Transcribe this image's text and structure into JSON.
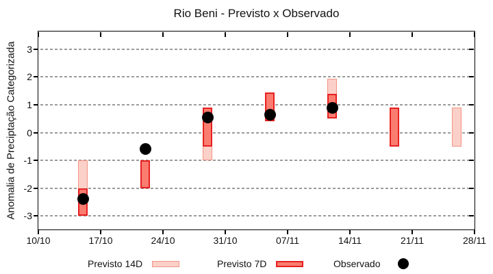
{
  "chart_data": {
    "type": "bar",
    "title": "Rio Beni - Previsto x Observado",
    "xlabel": "",
    "ylabel": "Anomalia de Preciptação Categorizada",
    "grid": "horizontal-dashed",
    "legend_position": "below-plot",
    "y_ticks": [
      3,
      2,
      1,
      0,
      -1,
      -2,
      -3
    ],
    "ylim": [
      -3.49,
      3.64
    ],
    "x_ticks": [
      {
        "label": "10/10",
        "day": 0
      },
      {
        "label": "17/10",
        "day": 7
      },
      {
        "label": "24/10",
        "day": 14
      },
      {
        "label": "31/10",
        "day": 21
      },
      {
        "label": "07/11",
        "day": 28
      },
      {
        "label": "14/11",
        "day": 35
      },
      {
        "label": "21/11",
        "day": 42
      },
      {
        "label": "28/11",
        "day": 49
      }
    ],
    "series": [
      {
        "name": "Previsto 14D",
        "type": "range-bar",
        "fill_color": "#fbd0c8",
        "border_color": "#f39384",
        "points": [
          {
            "date": "15/10",
            "day": 5,
            "low": -3.0,
            "high": -1.0
          },
          {
            "date": "29/10",
            "day": 19,
            "low": -1.0,
            "high": 0.9
          },
          {
            "date": "12/11",
            "day": 33,
            "low": 0.5,
            "high": 1.95
          },
          {
            "date": "26/11",
            "day": 47,
            "low": -0.5,
            "high": 0.9
          }
        ]
      },
      {
        "name": "Previsto 7D",
        "type": "range-bar",
        "fill_color": "#fa7d70",
        "border_color": "#e62020",
        "points": [
          {
            "date": "15/10",
            "day": 5,
            "low": -3.0,
            "high": -2.0
          },
          {
            "date": "22/10",
            "day": 12,
            "low": -2.0,
            "high": -1.0
          },
          {
            "date": "29/10",
            "day": 19,
            "low": -0.5,
            "high": 0.9
          },
          {
            "date": "05/11",
            "day": 26,
            "low": 0.4,
            "high": 1.45
          },
          {
            "date": "12/11",
            "day": 33,
            "low": 0.5,
            "high": 1.4
          },
          {
            "date": "19/11",
            "day": 40,
            "low": -0.5,
            "high": 0.9
          }
        ]
      },
      {
        "name": "Observado",
        "type": "scatter",
        "color": "#000000",
        "points": [
          {
            "date": "15/10",
            "day": 5,
            "value": -2.4
          },
          {
            "date": "22/10",
            "day": 12,
            "value": -0.6
          },
          {
            "date": "29/10",
            "day": 19,
            "value": 0.55
          },
          {
            "date": "05/11",
            "day": 26,
            "value": 0.65
          },
          {
            "date": "12/11",
            "day": 33,
            "value": 0.9
          }
        ]
      }
    ],
    "legend": [
      {
        "label": "Previsto 14D",
        "swatch": "light-bar"
      },
      {
        "label": "Previsto 7D",
        "swatch": "dark-bar"
      },
      {
        "label": "Observado",
        "swatch": "dot"
      }
    ]
  },
  "colors": {
    "prev14_fill": "#fbd0c8",
    "prev14_border": "#f39384",
    "prev7_fill": "#fa7d70",
    "prev7_border": "#e62020",
    "observed": "#000000",
    "grid": "#9a9a9a",
    "frame": "#000000"
  }
}
